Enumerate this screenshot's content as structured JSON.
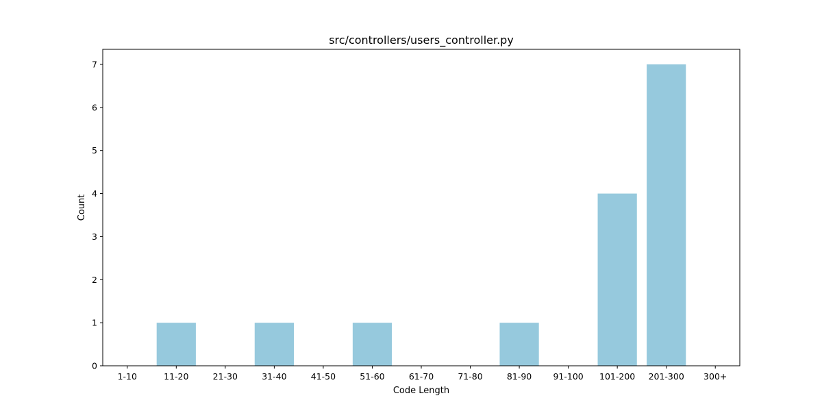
{
  "chart_data": {
    "type": "bar",
    "title": "src/controllers/users_controller.py",
    "xlabel": "Code Length",
    "ylabel": "Count",
    "categories": [
      "1-10",
      "11-20",
      "21-30",
      "31-40",
      "41-50",
      "51-60",
      "61-70",
      "71-80",
      "81-90",
      "91-100",
      "101-200",
      "201-300",
      "300+"
    ],
    "values": [
      0,
      1,
      0,
      1,
      0,
      1,
      0,
      0,
      1,
      0,
      4,
      7,
      0
    ],
    "ylim": [
      0,
      7.35
    ],
    "yticks": [
      0,
      1,
      2,
      3,
      4,
      5,
      6,
      7
    ],
    "bar_color": "#96c9dd",
    "grid": false,
    "legend": "none"
  }
}
